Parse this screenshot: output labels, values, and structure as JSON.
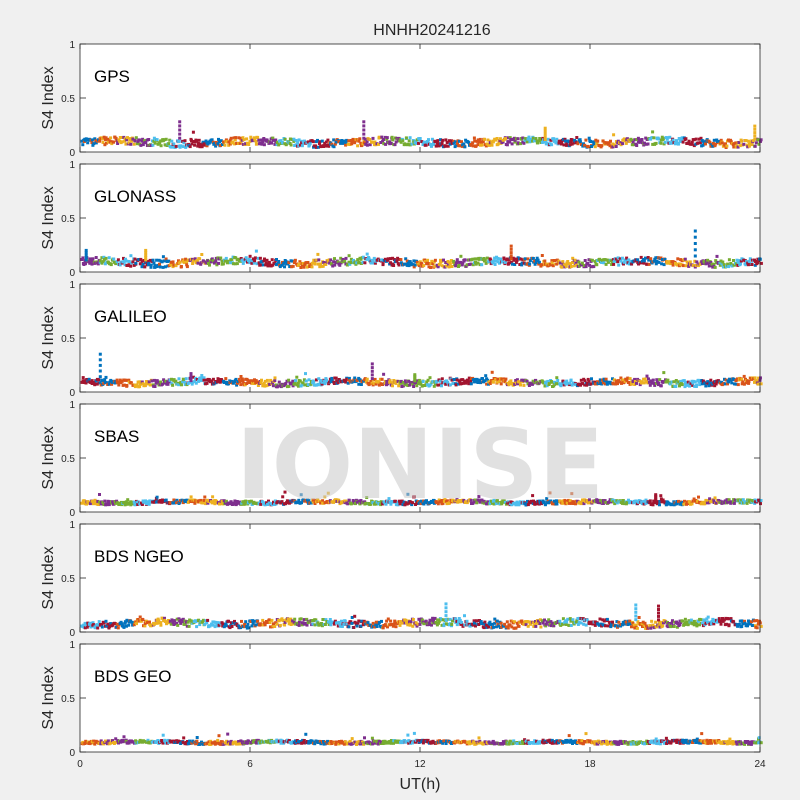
{
  "chart_data": {
    "type": "scatter",
    "title": "HNHH20241216",
    "xlabel": "UT(h)",
    "xlim": [
      0,
      24
    ],
    "xticks": [
      "0",
      "6",
      "12",
      "18",
      "24"
    ],
    "ylabel": "S4 Index",
    "ylim": [
      0,
      1
    ],
    "yticks": [
      "0",
      "0.5",
      "1"
    ],
    "watermark": "IONISE",
    "series_colors": [
      "#0072BD",
      "#D95319",
      "#EDB120",
      "#7E2F8E",
      "#77AC30",
      "#4DBEEE",
      "#A2142F"
    ],
    "panels": [
      {
        "name": "GPS",
        "baseline": 0.09,
        "spread": 0.035,
        "spikes": [
          [
            3.5,
            0.28
          ],
          [
            10.0,
            0.28
          ],
          [
            16.4,
            0.22
          ],
          [
            23.8,
            0.24
          ]
        ]
      },
      {
        "name": "GLONASS",
        "baseline": 0.09,
        "spread": 0.035,
        "spikes": [
          [
            0.2,
            0.2
          ],
          [
            2.3,
            0.2
          ],
          [
            15.2,
            0.24
          ],
          [
            21.7,
            0.38
          ]
        ]
      },
      {
        "name": "GALILEO",
        "baseline": 0.09,
        "spread": 0.03,
        "spikes": [
          [
            0.7,
            0.35
          ],
          [
            3.9,
            0.17
          ],
          [
            10.3,
            0.26
          ],
          [
            11.8,
            0.16
          ]
        ]
      },
      {
        "name": "SBAS",
        "baseline": 0.09,
        "spread": 0.018,
        "spikes": [
          [
            20.3,
            0.16
          ]
        ]
      },
      {
        "name": "BDS NGEO",
        "baseline": 0.08,
        "spread": 0.035,
        "spikes": [
          [
            12.9,
            0.26
          ],
          [
            19.6,
            0.25
          ],
          [
            20.4,
            0.24
          ]
        ]
      },
      {
        "name": "BDS GEO",
        "baseline": 0.09,
        "spread": 0.015,
        "spikes": []
      }
    ]
  }
}
